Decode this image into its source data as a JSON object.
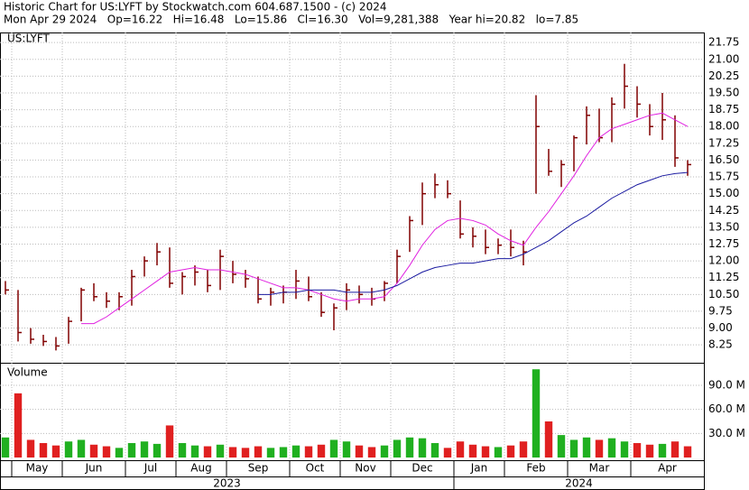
{
  "header": {
    "line1": "Historic Chart for US:LYFT by Stockwatch.com 604.687.1500 - (c) 2024",
    "line2": "Mon Apr 29 2024   Op=16.22   Hi=16.48   Lo=15.86   Cl=16.30   Vol=9,281,388   Year hi=20.82   lo=7.85"
  },
  "chart_data": [
    {
      "type": "ohlc",
      "label": "US:LYFT",
      "color": "#800000",
      "categories": [
        null,
        "May",
        null,
        null,
        null,
        "Jun",
        null,
        null,
        null,
        null,
        "Jul",
        null,
        null,
        null,
        "Aug",
        null,
        null,
        null,
        "Sep",
        null,
        null,
        null,
        null,
        "Oct",
        null,
        null,
        null,
        "Nov",
        null,
        null,
        null,
        "Dec",
        null,
        null,
        null,
        null,
        "Jan",
        null,
        null,
        null,
        "Feb",
        null,
        null,
        null,
        null,
        "Mar",
        null,
        null,
        null,
        null,
        "Apr",
        null,
        null,
        null,
        null
      ],
      "high": [
        11.1,
        10.7,
        9.0,
        8.7,
        8.6,
        9.5,
        10.8,
        11.0,
        10.6,
        10.6,
        11.6,
        12.2,
        12.8,
        12.6,
        11.5,
        11.8,
        11.6,
        12.5,
        12.0,
        11.6,
        11.3,
        10.8,
        10.9,
        11.6,
        11.3,
        10.6,
        10.1,
        11.0,
        10.9,
        10.8,
        11.1,
        12.5,
        14.0,
        15.5,
        15.9,
        15.6,
        14.7,
        13.5,
        13.4,
        13.0,
        13.4,
        12.9,
        19.4,
        17.0,
        16.5,
        17.6,
        18.9,
        18.8,
        19.3,
        20.8,
        19.8,
        19.0,
        19.5,
        18.5,
        16.5
      ],
      "low": [
        10.5,
        8.4,
        8.3,
        8.2,
        8.0,
        8.3,
        9.3,
        10.2,
        9.9,
        9.8,
        10.0,
        11.3,
        11.8,
        10.8,
        10.5,
        10.9,
        10.6,
        10.7,
        11.0,
        10.8,
        10.1,
        10.0,
        10.1,
        10.3,
        10.2,
        9.5,
        8.9,
        9.8,
        10.1,
        10.0,
        10.2,
        11.0,
        12.4,
        13.6,
        14.8,
        14.8,
        13.0,
        12.6,
        12.3,
        12.3,
        12.2,
        11.8,
        15.0,
        15.8,
        15.3,
        16.0,
        17.2,
        17.3,
        17.3,
        18.8,
        18.4,
        17.6,
        17.4,
        16.2,
        15.8
      ],
      "close": [
        10.7,
        8.8,
        8.5,
        8.4,
        8.2,
        9.3,
        10.7,
        10.4,
        10.2,
        10.4,
        11.3,
        12.0,
        12.4,
        11.0,
        11.3,
        11.5,
        10.9,
        12.2,
        11.4,
        11.2,
        10.3,
        10.6,
        10.6,
        11.1,
        10.4,
        9.7,
        9.9,
        10.7,
        10.5,
        10.3,
        11.0,
        12.2,
        13.8,
        15.0,
        15.4,
        15.0,
        13.2,
        13.1,
        12.6,
        12.7,
        12.6,
        12.4,
        18.0,
        16.0,
        16.3,
        17.5,
        18.5,
        17.5,
        19.0,
        19.8,
        19.0,
        18.0,
        18.3,
        16.6,
        16.3
      ],
      "series": [
        {
          "color": "#e020e0",
          "values": [
            null,
            null,
            null,
            null,
            null,
            null,
            9.2,
            9.2,
            9.5,
            9.9,
            10.3,
            10.7,
            11.1,
            11.5,
            11.6,
            11.7,
            11.6,
            11.6,
            11.5,
            11.4,
            11.2,
            11.0,
            10.8,
            10.8,
            10.7,
            10.5,
            10.3,
            10.2,
            10.3,
            10.3,
            10.4,
            11.0,
            11.8,
            12.7,
            13.4,
            13.8,
            13.9,
            13.8,
            13.6,
            13.2,
            12.9,
            12.7,
            13.5,
            14.2,
            15.0,
            15.8,
            16.7,
            17.5,
            17.9,
            18.1,
            18.3,
            18.5,
            18.6,
            18.3,
            18.0
          ]
        },
        {
          "color": "#1a1aa0",
          "values": [
            null,
            null,
            null,
            null,
            null,
            null,
            null,
            null,
            null,
            null,
            null,
            null,
            null,
            null,
            null,
            null,
            null,
            null,
            null,
            null,
            10.5,
            10.5,
            10.6,
            10.6,
            10.7,
            10.7,
            10.7,
            10.6,
            10.6,
            10.6,
            10.7,
            10.9,
            11.2,
            11.5,
            11.7,
            11.8,
            11.9,
            11.9,
            12.0,
            12.1,
            12.1,
            12.3,
            12.6,
            12.9,
            13.3,
            13.7,
            14.0,
            14.4,
            14.8,
            15.1,
            15.4,
            15.6,
            15.8,
            15.9,
            15.95
          ]
        }
      ],
      "ylim": [
        7.45,
        22.2
      ],
      "yticks": [
        8.25,
        {
          "value": 9,
          "label": "9.00"
        },
        9.75,
        {
          "value": 10.5,
          "label": "10.50"
        },
        11.25,
        {
          "value": 12,
          "label": "12.00"
        },
        12.75,
        {
          "value": 13.5,
          "label": "13.50"
        },
        14.25,
        {
          "value": 15,
          "label": "15.00"
        },
        15.75,
        {
          "value": 16.5,
          "label": "16.50"
        },
        17.25,
        {
          "value": 18,
          "label": "18.00"
        },
        18.75,
        {
          "value": 19.5,
          "label": "19.50"
        },
        20.25,
        {
          "value": 21,
          "label": "21.00"
        },
        21.75
      ],
      "grid": true,
      "years": [
        "2023",
        "2024"
      ]
    },
    {
      "type": "bar",
      "label": "Volume",
      "up_color": "#20b020",
      "down_color": "#e02020",
      "values": [
        25,
        80,
        22,
        18,
        15,
        20,
        22,
        16,
        14,
        12,
        18,
        20,
        17,
        40,
        18,
        15,
        14,
        16,
        13,
        12,
        14,
        12,
        13,
        15,
        14,
        16,
        22,
        20,
        15,
        13,
        15,
        22,
        25,
        24,
        18,
        12,
        20,
        16,
        14,
        13,
        15,
        20,
        110,
        45,
        28,
        22,
        25,
        22,
        24,
        20,
        18,
        16,
        17,
        20,
        14
      ],
      "ylim": [
        0,
        117
      ],
      "yticks": [
        {
          "value": 30,
          "label": "30.0 M"
        },
        {
          "value": 60,
          "label": "60.0 M"
        },
        {
          "value": 90,
          "label": "90.0 M"
        }
      ],
      "grid": true
    }
  ]
}
